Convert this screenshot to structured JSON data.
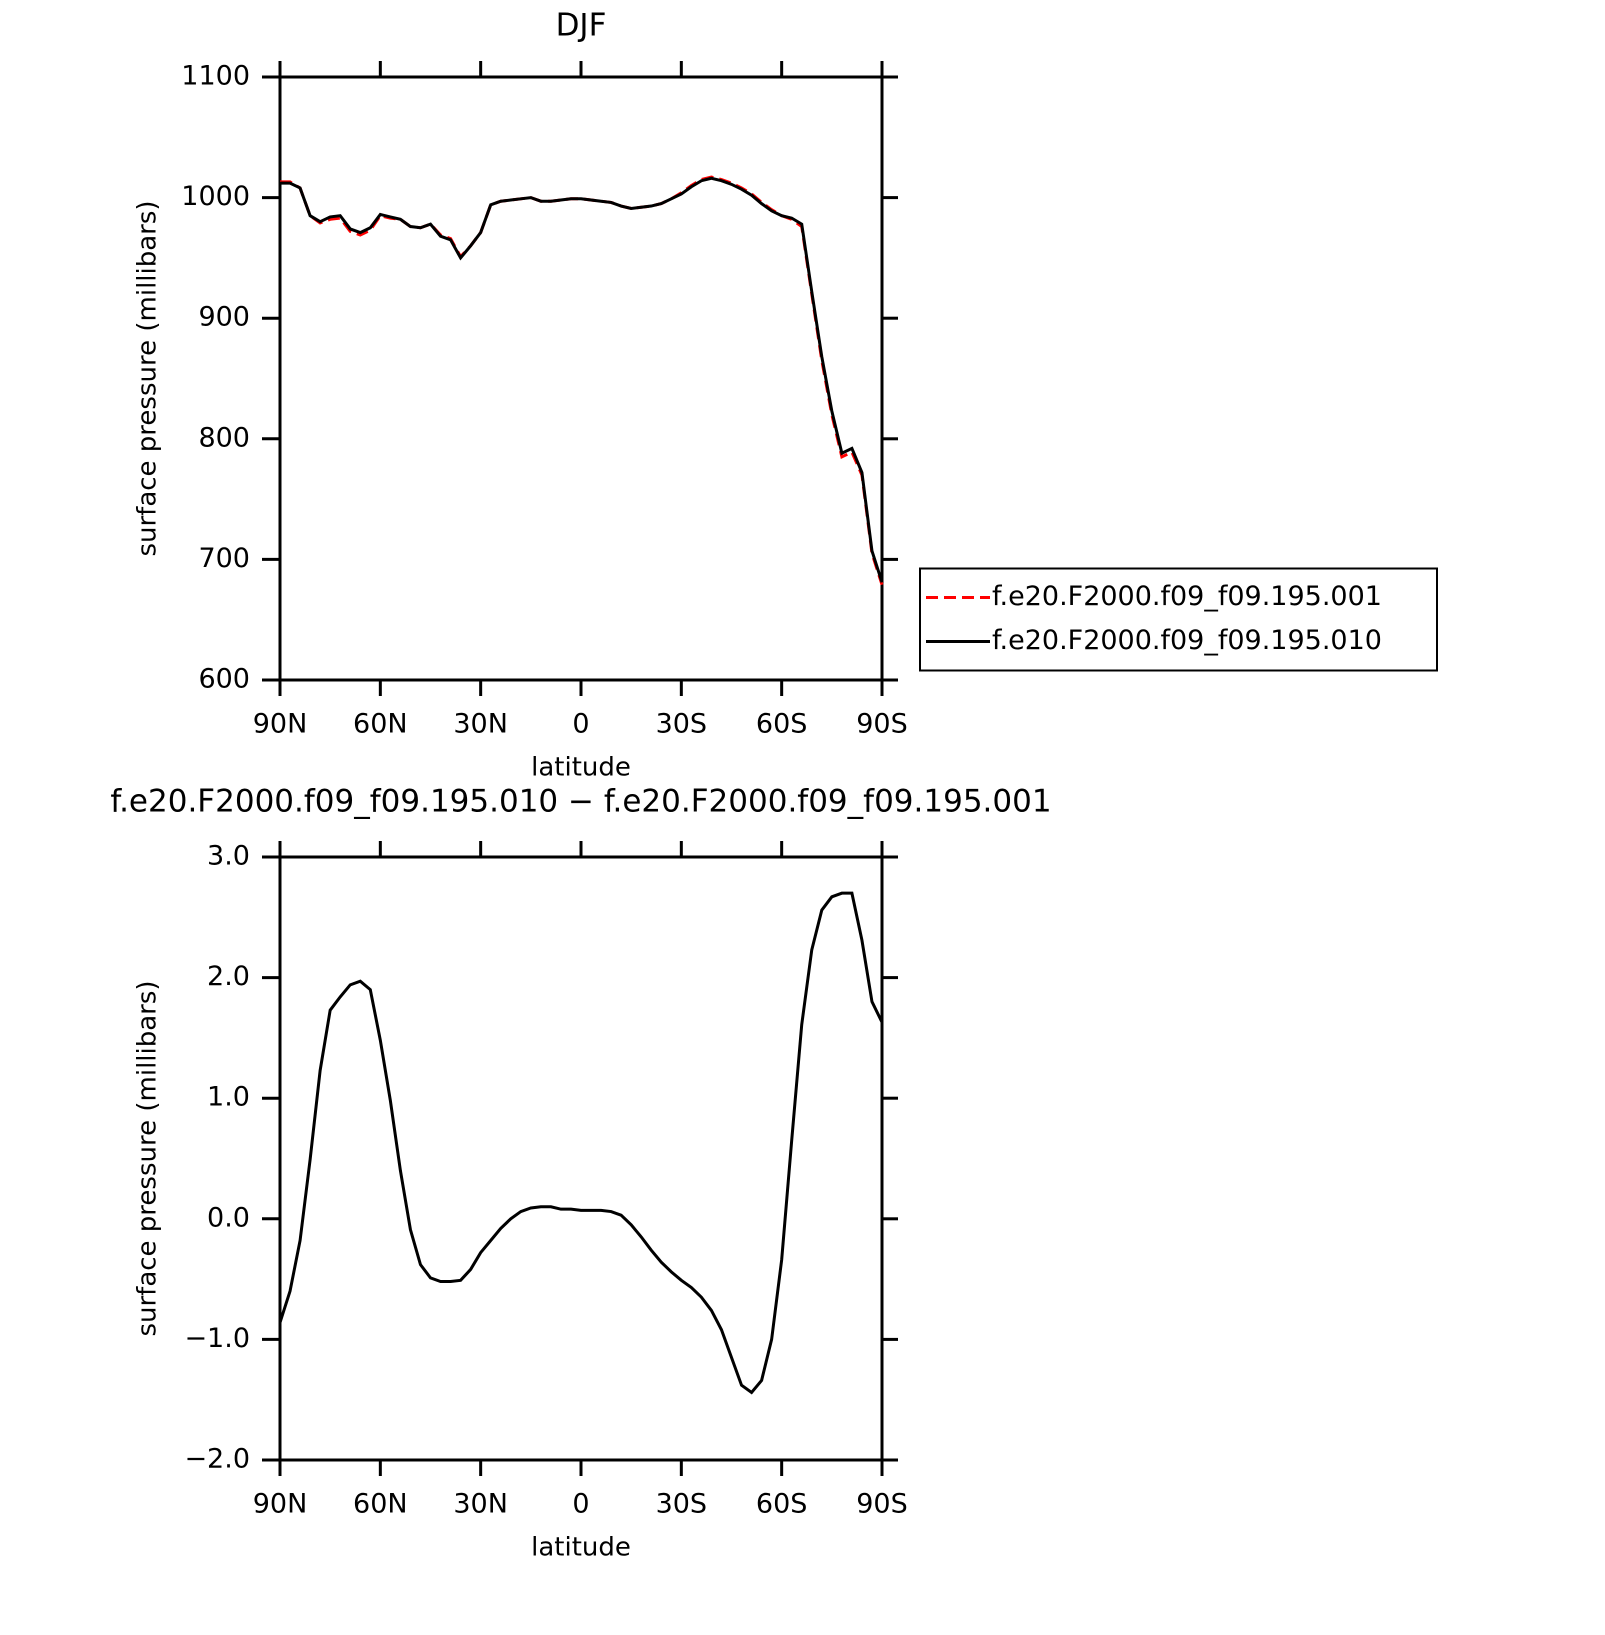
{
  "chart_data": [
    {
      "type": "line",
      "title": "DJF",
      "xlabel": "latitude",
      "ylabel": "surface pressure (millibars)",
      "x": [
        90,
        87,
        84,
        81,
        78,
        75,
        72,
        69,
        66,
        63,
        60,
        57,
        54,
        51,
        48,
        45,
        42,
        39,
        36,
        33,
        30,
        27,
        24,
        21,
        18,
        15,
        12,
        9,
        6,
        3,
        0,
        -3,
        -6,
        -9,
        -12,
        -15,
        -18,
        -21,
        -24,
        -27,
        -30,
        -33,
        -36,
        -39,
        -42,
        -45,
        -48,
        -51,
        -54,
        -57,
        -60,
        -63,
        -66,
        -69,
        -72,
        -75,
        -78,
        -81,
        -84,
        -87,
        -90
      ],
      "xlim": [
        90,
        -90
      ],
      "xticks": [
        {
          "value": 90,
          "label": "90N"
        },
        {
          "value": 60,
          "label": "60N"
        },
        {
          "value": 30,
          "label": "30N"
        },
        0,
        {
          "value": -30,
          "label": "30S"
        },
        {
          "value": -60,
          "label": "60S"
        },
        {
          "value": -90,
          "label": "90S"
        }
      ],
      "ylim": [
        600,
        1100
      ],
      "yticks": [
        600,
        700,
        800,
        900,
        1000,
        1100
      ],
      "legend": "right",
      "series": [
        {
          "name": "f.e20.F2000.f09_f09.195.001",
          "color": "#ff0000",
          "line_style": "dashed",
          "values": [
            1013,
            1013,
            1008,
            985,
            979,
            982,
            983,
            972,
            969,
            973,
            985,
            983,
            982,
            976,
            975,
            978,
            969,
            966,
            951,
            960,
            971,
            994,
            997,
            998,
            999,
            1000,
            997,
            997,
            998,
            999,
            999,
            998,
            997,
            996,
            993,
            991,
            992,
            993,
            995,
            999,
            1004,
            1010,
            1015,
            1017,
            1015,
            1012,
            1008,
            1003,
            996,
            990,
            985,
            982,
            976,
            920,
            865,
            820,
            785,
            789,
            770,
            705,
            679
          ]
        },
        {
          "name": "f.e20.F2000.f09_f09.195.010",
          "color": "#000000",
          "line_style": "solid",
          "values": [
            1012,
            1012,
            1008,
            985,
            980,
            984,
            985,
            974,
            971,
            975,
            986,
            984,
            982,
            976,
            975,
            978,
            968,
            965,
            950,
            960,
            971,
            994,
            997,
            998,
            999,
            1000,
            997,
            997,
            998,
            999,
            999,
            998,
            997,
            996,
            993,
            991,
            992,
            993,
            995,
            999,
            1003,
            1009,
            1014,
            1016,
            1014,
            1011,
            1007,
            1002,
            995,
            989,
            985,
            983,
            978,
            922,
            868,
            823,
            788,
            792,
            772,
            707,
            681
          ]
        }
      ]
    },
    {
      "type": "line",
      "title": "f.e20.F2000.f09_f09.195.010 − f.e20.F2000.f09_f09.195.001",
      "xlabel": "latitude",
      "ylabel": "surface pressure (millibars)",
      "x": [
        90,
        87,
        84,
        81,
        78,
        75,
        72,
        69,
        66,
        63,
        60,
        57,
        54,
        51,
        48,
        45,
        42,
        39,
        36,
        33,
        30,
        27,
        24,
        21,
        18,
        15,
        12,
        9,
        6,
        3,
        0,
        -3,
        -6,
        -9,
        -12,
        -15,
        -18,
        -21,
        -24,
        -27,
        -30,
        -33,
        -36,
        -39,
        -42,
        -45,
        -48,
        -51,
        -54,
        -57,
        -60,
        -63,
        -66,
        -69,
        -72,
        -75,
        -78,
        -81,
        -84,
        -87,
        -90
      ],
      "xlim": [
        90,
        -90
      ],
      "xticks": [
        {
          "value": 90,
          "label": "90N"
        },
        {
          "value": 60,
          "label": "60N"
        },
        {
          "value": 30,
          "label": "30N"
        },
        0,
        {
          "value": -30,
          "label": "30S"
        },
        {
          "value": -60,
          "label": "60S"
        },
        {
          "value": -90,
          "label": "90S"
        }
      ],
      "ylim": [
        -2,
        3
      ],
      "yticks": [
        {
          "value": -2,
          "label": "−2.0"
        },
        {
          "value": -1,
          "label": "−1.0"
        },
        {
          "value": 0,
          "label": "0.0"
        },
        {
          "value": 1,
          "label": "1.0"
        },
        {
          "value": 2,
          "label": "2.0"
        },
        {
          "value": 3,
          "label": "3.0"
        }
      ],
      "series": [
        {
          "color": "#000000",
          "line_style": "solid",
          "values": [
            -0.86,
            -0.6,
            -0.18,
            0.49,
            1.23,
            1.73,
            1.84,
            1.94,
            1.97,
            1.9,
            1.48,
            0.98,
            0.4,
            -0.09,
            -0.38,
            -0.49,
            -0.52,
            -0.52,
            -0.51,
            -0.42,
            -0.28,
            -0.18,
            -0.08,
            0.0,
            0.06,
            0.09,
            0.1,
            0.1,
            0.08,
            0.08,
            0.07,
            0.07,
            0.07,
            0.06,
            0.03,
            -0.05,
            -0.15,
            -0.26,
            -0.36,
            -0.44,
            -0.51,
            -0.57,
            -0.65,
            -0.76,
            -0.92,
            -1.15,
            -1.38,
            -1.44,
            -1.34,
            -1.0,
            -0.34,
            0.65,
            1.61,
            2.23,
            2.56,
            2.67,
            2.7,
            2.7,
            2.31,
            1.8,
            1.63
          ]
        }
      ]
    }
  ]
}
